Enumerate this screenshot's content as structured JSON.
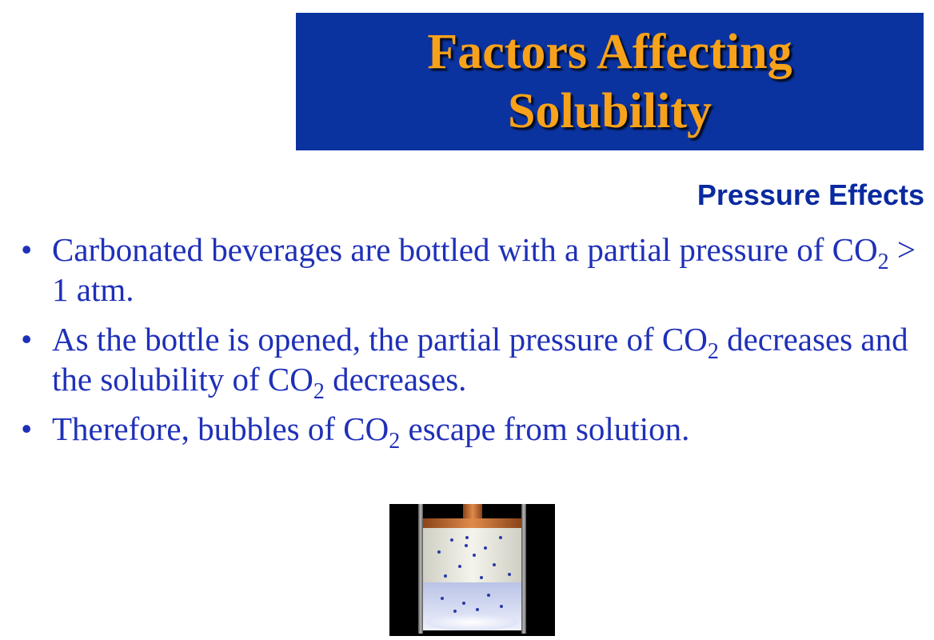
{
  "title": {
    "line1": "Factors Affecting",
    "line2": "Solubility"
  },
  "subtitle": "Pressure Effects",
  "bullets": [
    {
      "parts": [
        "Carbonated beverages are bottled with a partial pressure of CO",
        "2",
        " > 1 atm."
      ]
    },
    {
      "parts": [
        "As the bottle is opened, the partial pressure of CO",
        "2",
        " decreases and the solubility of CO",
        "2",
        " decreases."
      ]
    },
    {
      "parts": [
        "Therefore, bubbles of CO",
        "2",
        " escape from solution."
      ]
    }
  ],
  "bullet_glyph": "•",
  "colors": {
    "title_bg": "#0a33a0",
    "title_text": "#f7a21a",
    "body_text": "#1f30b8",
    "subtitle_text": "#0a2aa0",
    "piston": "#c8682a"
  },
  "figure": {
    "icon": "piston-cylinder-illustration"
  }
}
